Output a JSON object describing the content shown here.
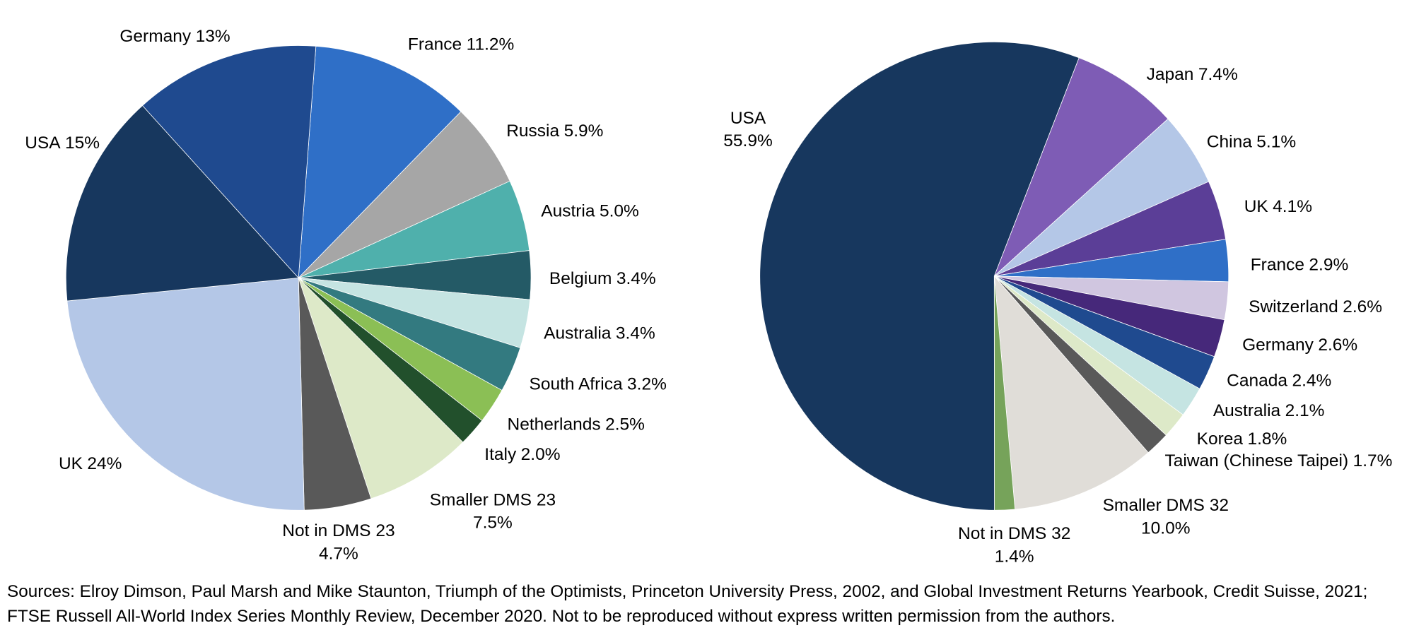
{
  "chart_data": [
    {
      "type": "pie",
      "categories": [
        "France",
        "Russia",
        "Austria",
        "Belgium",
        "Australia",
        "South Africa",
        "Netherlands",
        "Italy",
        "Smaller DMS 23",
        "Not in DMS 23",
        "UK",
        "USA",
        "Germany"
      ],
      "values": [
        11.2,
        5.9,
        5.0,
        3.4,
        3.4,
        3.2,
        2.5,
        2.0,
        7.5,
        4.7,
        24,
        15,
        13
      ],
      "value_labels": [
        "11.2%",
        "5.9%",
        "5.0%",
        "3.4%",
        "3.4%",
        "3.2%",
        "2.5%",
        "2.0%",
        "7.5%",
        "4.7%",
        "24%",
        "15%",
        "13%"
      ],
      "colors": [
        "#2f6fc7",
        "#a6a6a6",
        "#4fb0ac",
        "#245a66",
        "#c5e4e2",
        "#337a80",
        "#8bbf55",
        "#22502c",
        "#dde9c8",
        "#595959",
        "#b4c7e7",
        "#17375e",
        "#1f4a8f"
      ]
    },
    {
      "type": "pie",
      "categories": [
        "Japan",
        "China",
        "UK",
        "France",
        "Switzerland",
        "Germany",
        "Canada",
        "Australia",
        "Korea",
        "Taiwan (Chinese Taipei)",
        "Smaller DMS 32",
        "Not in DMS 32",
        "USA"
      ],
      "values": [
        7.4,
        5.1,
        4.1,
        2.9,
        2.6,
        2.6,
        2.4,
        2.1,
        1.8,
        1.7,
        10.0,
        1.4,
        55.9
      ],
      "value_labels": [
        "7.4%",
        "5.1%",
        "4.1%",
        "2.9%",
        "2.6%",
        "2.6%",
        "2.4%",
        "2.1%",
        "1.8%",
        "1.7%",
        "10.0%",
        "1.4%",
        "55.9%"
      ],
      "colors": [
        "#7e5cb5",
        "#b4c7e7",
        "#5b3e97",
        "#2f6fc7",
        "#d0c6e0",
        "#46287a",
        "#1f4a8f",
        "#c5e4e2",
        "#dde9c8",
        "#595959",
        "#e0ddd8",
        "#76a35a",
        "#17375e"
      ]
    }
  ],
  "source": "Sources: Elroy Dimson, Paul Marsh and Mike Staunton, Triumph of the Optimists, Princeton University Press, 2002, and Global Investment Returns Yearbook, Credit Suisse, 2021; FTSE Russell All-World Index Series Monthly Review, December 2020. Not to be reproduced without express written permission from the authors."
}
